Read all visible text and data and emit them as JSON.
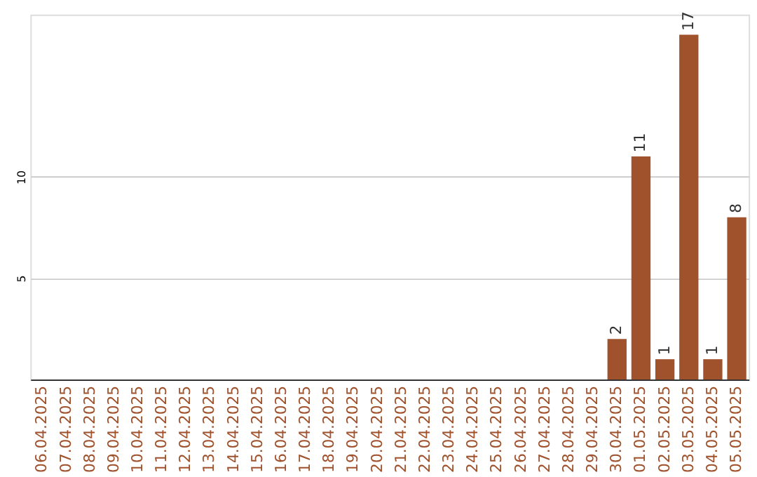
{
  "chart_data": {
    "type": "bar",
    "categories": [
      "06.04.2025",
      "07.04.2025",
      "08.04.2025",
      "09.04.2025",
      "10.04.2025",
      "11.04.2025",
      "12.04.2025",
      "13.04.2025",
      "14.04.2025",
      "15.04.2025",
      "16.04.2025",
      "17.04.2025",
      "18.04.2025",
      "19.04.2025",
      "20.04.2025",
      "21.04.2025",
      "22.04.2025",
      "23.04.2025",
      "24.04.2025",
      "25.04.2025",
      "26.04.2025",
      "27.04.2025",
      "28.04.2025",
      "29.04.2025",
      "30.04.2025",
      "01.05.2025",
      "02.05.2025",
      "03.05.2025",
      "04.05.2025",
      "05.05.2025"
    ],
    "values": [
      0,
      0,
      0,
      0,
      0,
      0,
      0,
      0,
      0,
      0,
      0,
      0,
      0,
      0,
      0,
      0,
      0,
      0,
      0,
      0,
      0,
      0,
      0,
      0,
      2,
      11,
      1,
      17,
      1,
      8
    ],
    "value_labels": [
      null,
      null,
      null,
      null,
      null,
      null,
      null,
      null,
      null,
      null,
      null,
      null,
      null,
      null,
      null,
      null,
      null,
      null,
      null,
      null,
      null,
      null,
      null,
      null,
      "2",
      "11",
      "1",
      "17",
      "1",
      "8"
    ],
    "color": "#a0522d",
    "ylim": [
      0,
      18
    ],
    "yticks": [
      5,
      10
    ],
    "grid": "y"
  }
}
